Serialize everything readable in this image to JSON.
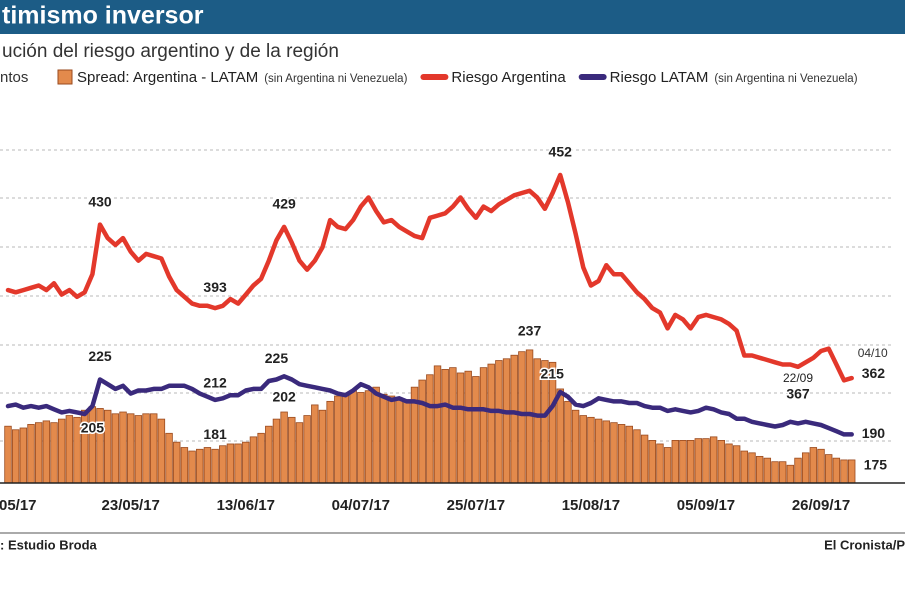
{
  "chart_data": {
    "type": "bar_line",
    "title": "timismo inversor",
    "subtitle": "ución del riesgo argentino y de la región",
    "unit_label": "ntos",
    "source": ": Estudio Broda",
    "credit": "El Cronista/P",
    "annotations": [
      "22/09",
      "04/10"
    ],
    "categories": [
      null,
      "/05/17",
      null,
      null,
      null,
      null,
      null,
      null,
      null,
      null,
      null,
      null,
      null,
      null,
      null,
      null,
      "23/05/17",
      null,
      null,
      null,
      null,
      null,
      null,
      null,
      null,
      null,
      null,
      null,
      null,
      null,
      null,
      "13/06/17",
      null,
      null,
      null,
      null,
      null,
      null,
      null,
      null,
      null,
      null,
      null,
      null,
      null,
      null,
      "04/07/17",
      null,
      null,
      null,
      null,
      null,
      null,
      null,
      null,
      null,
      null,
      null,
      null,
      null,
      null,
      "25/07/17",
      null,
      null,
      null,
      null,
      null,
      null,
      null,
      null,
      null,
      null,
      null,
      null,
      null,
      null,
      "15/08/17",
      null,
      null,
      null,
      null,
      null,
      null,
      null,
      null,
      null,
      null,
      null,
      null,
      null,
      null,
      "05/09/17",
      null,
      null,
      null,
      null,
      null,
      null,
      null,
      null,
      null,
      null,
      null,
      null,
      null,
      null,
      "26/09/17",
      null,
      null,
      null,
      null
    ],
    "series": [
      {
        "name": "Spread: Argentina - LATAM",
        "name_note": "(sin Argentina ni Venezuela)",
        "type": "bar",
        "color": "#e38a4c",
        "ylim": [
          162,
          375
        ],
        "values": [
          194,
          192,
          193,
          195,
          196,
          197,
          196,
          198,
          200,
          199,
          203,
          205,
          204,
          203,
          201,
          202,
          201,
          200,
          201,
          201,
          198,
          190,
          185,
          182,
          180,
          181,
          182,
          181,
          183,
          184,
          184,
          185,
          188,
          190,
          194,
          198,
          202,
          199,
          196,
          200,
          206,
          203,
          208,
          211,
          212,
          214,
          213,
          214,
          216,
          212,
          211,
          210,
          209,
          216,
          220,
          223,
          228,
          226,
          227,
          224,
          225,
          222,
          227,
          229,
          231,
          232,
          234,
          236,
          237,
          232,
          231,
          230,
          215,
          208,
          203,
          200,
          199,
          198,
          197,
          196,
          195,
          194,
          192,
          189,
          186,
          184,
          182,
          186,
          186,
          186,
          187,
          187,
          188,
          186,
          184,
          183,
          180,
          179,
          177,
          176,
          174,
          174,
          172,
          176,
          179,
          182,
          181,
          178,
          176,
          175,
          175
        ]
      },
      {
        "name": "Riesgo Argentina",
        "type": "line",
        "color": "#e3382b",
        "ylim": [
          315.5,
          483
        ],
        "values": [
          401,
          400,
          401,
          402,
          403,
          401,
          404,
          399,
          401,
          398,
          400,
          408,
          430,
          424,
          421,
          424,
          418,
          414,
          417,
          416,
          415,
          407,
          401,
          398,
          395,
          394,
          394,
          393,
          394,
          397,
          395,
          399,
          403,
          406,
          414,
          423,
          429,
          422,
          414,
          410,
          414,
          420,
          432,
          429,
          428,
          432,
          438,
          442,
          436,
          431,
          432,
          429,
          427,
          425,
          424,
          433,
          434,
          435,
          438,
          442,
          437,
          433,
          438,
          436,
          439,
          441,
          443,
          444,
          445,
          442,
          437,
          444,
          452,
          440,
          426,
          411,
          403,
          405,
          412,
          408,
          408,
          404,
          400,
          397,
          393,
          391,
          384,
          390,
          388,
          384,
          389,
          390,
          389,
          388,
          386,
          383,
          372,
          372,
          371,
          370,
          369,
          368,
          368,
          367,
          369,
          371,
          374,
          375,
          368,
          361,
          362
        ]
      },
      {
        "name": "Riesgo LATAM",
        "name_note": "(sin Argentina ni Venezuela)",
        "type": "line",
        "color": "#3a2a7c",
        "ylim": [
          159,
          400
        ],
        "values": [
          208,
          209,
          207,
          208,
          207,
          208,
          206,
          204,
          205,
          204,
          203,
          208,
          225,
          222,
          219,
          221,
          216,
          218,
          218,
          219,
          219,
          221,
          221,
          221,
          219,
          216,
          214,
          212,
          213,
          215,
          215,
          218,
          219,
          219,
          224,
          225,
          227,
          225,
          222,
          221,
          220,
          219,
          218,
          216,
          215,
          218,
          222,
          220,
          216,
          214,
          212,
          213,
          211,
          211,
          210,
          208,
          208,
          209,
          207,
          207,
          206,
          206,
          206,
          205,
          205,
          204,
          204,
          203,
          203,
          202,
          202,
          208,
          217,
          214,
          209,
          208,
          210,
          213,
          212,
          211,
          211,
          210,
          210,
          208,
          207,
          207,
          205,
          206,
          205,
          204,
          205,
          207,
          206,
          204,
          203,
          200,
          200,
          198,
          197,
          196,
          195,
          196,
          198,
          197,
          198,
          197,
          196,
          194,
          192,
          190,
          190
        ]
      }
    ]
  }
}
